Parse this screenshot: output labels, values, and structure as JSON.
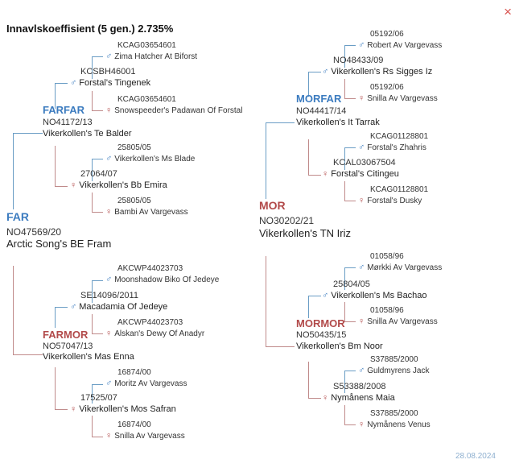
{
  "header": {
    "title": "Innavlskoeffisient (5 gen.) 2.735%",
    "close_icon": "×"
  },
  "footer": {
    "date": "28.08.2024"
  },
  "symbols": {
    "male": "♂",
    "female": "♀"
  },
  "colors": {
    "male": "#3b7bbf",
    "female": "#b24a4a"
  },
  "far": {
    "label": "FAR",
    "reg": "NO47569/20",
    "name": "Arctic Song's BE Fram"
  },
  "mor": {
    "label": "MOR",
    "reg": "NO30202/21",
    "name": "Vikerkollen's TN Iriz"
  },
  "farfar": {
    "label": "FARFAR",
    "reg": "NO41172/13",
    "name": "Vikerkollen's Te Balder"
  },
  "farmor": {
    "label": "FARMOR",
    "reg": "NO57047/13",
    "name": "Vikerkollen's Mas Enna"
  },
  "morfar": {
    "label": "MORFAR",
    "reg": "NO44417/14",
    "name": "Vikerkollen's It Tarrak"
  },
  "mormor": {
    "label": "MORMOR",
    "reg": "NO50435/15",
    "name": "Vikerkollen's Bm Noor"
  },
  "gen3": {
    "ff_s": {
      "reg": "KCSBH46001",
      "name": "Forstal's Tingenek"
    },
    "ff_d": {
      "reg": "27064/07",
      "name": "Vikerkollen's Bb Emira"
    },
    "fm_s": {
      "reg": "SE14096/2011",
      "name": "Macadamia Of Jedeye"
    },
    "fm_d": {
      "reg": "17525/07",
      "name": "Vikerkollen's Mos Safran"
    },
    "mf_s": {
      "reg": "NO48433/09",
      "name": "Vikerkollen's Rs Sigges Iz"
    },
    "mf_d": {
      "reg": "KCAL03067504",
      "name": "Forstal's Citingeu"
    },
    "mm_s": {
      "reg": "25804/05",
      "name": "Vikerkollen's Ms Bachao"
    },
    "mm_d": {
      "reg": "S53388/2008",
      "name": "Nymånens Maia"
    }
  },
  "gen4": {
    "a1": {
      "reg": "KCAG03654601",
      "name": "Zima Hatcher At Biforst"
    },
    "a2": {
      "reg": "KCAG03654601",
      "name": "Snowspeeder's Padawan Of Forstal"
    },
    "a3": {
      "reg": "25805/05",
      "name": "Vikerkollen's Ms Blade"
    },
    "a4": {
      "reg": "25805/05",
      "name": "Bambi Av Vargevass"
    },
    "a5": {
      "reg": "AKCWP44023703",
      "name": "Moonshadow Biko Of Jedeye"
    },
    "a6": {
      "reg": "AKCWP44023703",
      "name": "Alskan's Dewy Of Anadyr"
    },
    "a7": {
      "reg": "16874/00",
      "name": "Moritz Av Vargevass"
    },
    "a8": {
      "reg": "16874/00",
      "name": "Snilla Av Vargevass"
    },
    "b1": {
      "reg": "05192/06",
      "name": "Robert Av Vargevass"
    },
    "b2": {
      "reg": "05192/06",
      "name": "Snilla Av Vargevass"
    },
    "b3": {
      "reg": "KCAG01128801",
      "name": "Forstal's Zhahris"
    },
    "b4": {
      "reg": "KCAG01128801",
      "name": "Forstal's Dusky"
    },
    "b5": {
      "reg": "01058/96",
      "name": "Mørkki Av Vargevass"
    },
    "b6": {
      "reg": "01058/96",
      "name": "Snilla Av Vargevass"
    },
    "b7": {
      "reg": "S37885/2000",
      "name": "Guldmyrens Jack"
    },
    "b8": {
      "reg": "S37885/2000",
      "name": "Nymånens Venus"
    }
  }
}
